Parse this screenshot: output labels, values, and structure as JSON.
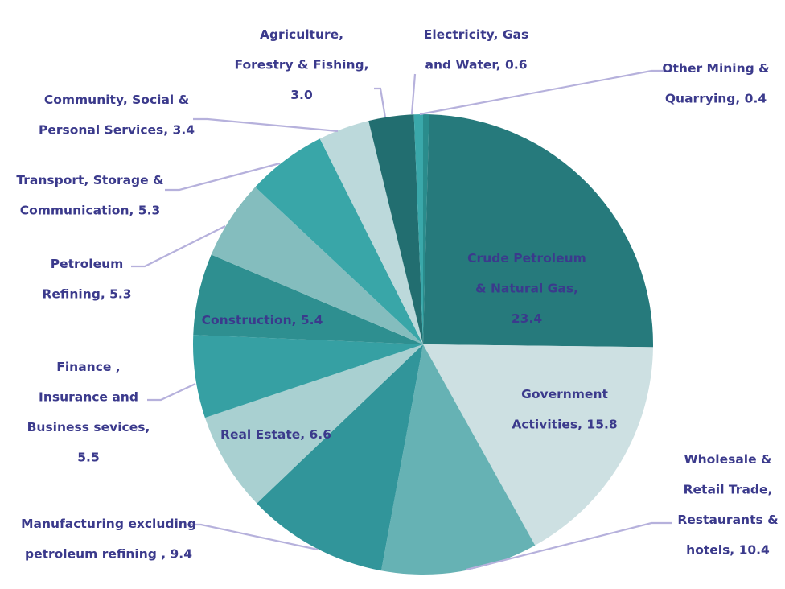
{
  "chart_data": {
    "type": "pie",
    "title": "",
    "start": "12 o'clock, clockwise",
    "unit": "percent share",
    "slices": [
      {
        "name": "Other Mining & Quarrying",
        "value": 0.4,
        "color": "#2a8c8c",
        "label_lines": [
          "Other Mining &",
          "Quarrying, 0.4"
        ],
        "label_position": "outside"
      },
      {
        "name": "Crude Petroleum & Natural Gas",
        "value": 23.4,
        "color": "#267a7c",
        "label_lines": [
          "Crude Petroleum",
          "& Natural Gas,",
          "23.4"
        ],
        "label_position": "inside"
      },
      {
        "name": "Government Activities",
        "value": 15.8,
        "color": "#cde0e2",
        "label_lines": [
          "Government",
          "Activities, 15.8"
        ],
        "label_position": "inside"
      },
      {
        "name": "Wholesale & Retail Trade, Restaurants & hotels",
        "value": 10.4,
        "color": "#66b2b4",
        "label_lines": [
          "Wholesale &",
          "Retail Trade,",
          "Restaurants &",
          "hotels, 10.4"
        ],
        "label_position": "outside"
      },
      {
        "name": "Manufacturing excluding petroleum refining",
        "value": 9.4,
        "color": "#31959a",
        "label_lines": [
          "Manufacturing excluding",
          "petroleum refining , 9.4"
        ],
        "label_position": "outside"
      },
      {
        "name": "Real Estate",
        "value": 6.6,
        "color": "#a9d0d1",
        "label_lines": [
          "Real Estate, 6.6"
        ],
        "label_position": "inside"
      },
      {
        "name": "Finance , Insurance and Business sevices",
        "value": 5.5,
        "color": "#36a0a3",
        "label_lines": [
          "Finance ,",
          "Insurance and",
          "Business sevices,",
          "5.5"
        ],
        "label_position": "outside"
      },
      {
        "name": "Construction",
        "value": 5.4,
        "color": "#2e8f90",
        "label_lines": [
          "Construction, 5.4"
        ],
        "label_position": "inside"
      },
      {
        "name": "Petroleum Refining",
        "value": 5.3,
        "color": "#84bdbe",
        "label_lines": [
          "Petroleum",
          "Refining, 5.3"
        ],
        "label_position": "outside"
      },
      {
        "name": "Transport, Storage & Communication",
        "value": 5.3,
        "color": "#39a6a8",
        "label_lines": [
          "Transport, Storage &",
          "Communication, 5.3"
        ],
        "label_position": "outside"
      },
      {
        "name": "Community, Social & Personal Services",
        "value": 3.4,
        "color": "#bcd9db",
        "label_lines": [
          "Community, Social &",
          "Personal Services, 3.4"
        ],
        "label_position": "outside"
      },
      {
        "name": "Agriculture, Forestry & Fishing",
        "value": 3.0,
        "color": "#226e70",
        "label_lines": [
          "Agriculture,",
          "Forestry & Fishing,",
          "3.0"
        ],
        "label_position": "outside"
      },
      {
        "name": "Electricity, Gas and Water",
        "value": 0.6,
        "color": "#3aa8aa",
        "label_lines": [
          "Electricity, Gas",
          "and Water, 0.6"
        ],
        "label_position": "outside"
      }
    ],
    "label_color": "#3b3a8c",
    "leader_color": "#b6b1dc",
    "legend": "none"
  }
}
